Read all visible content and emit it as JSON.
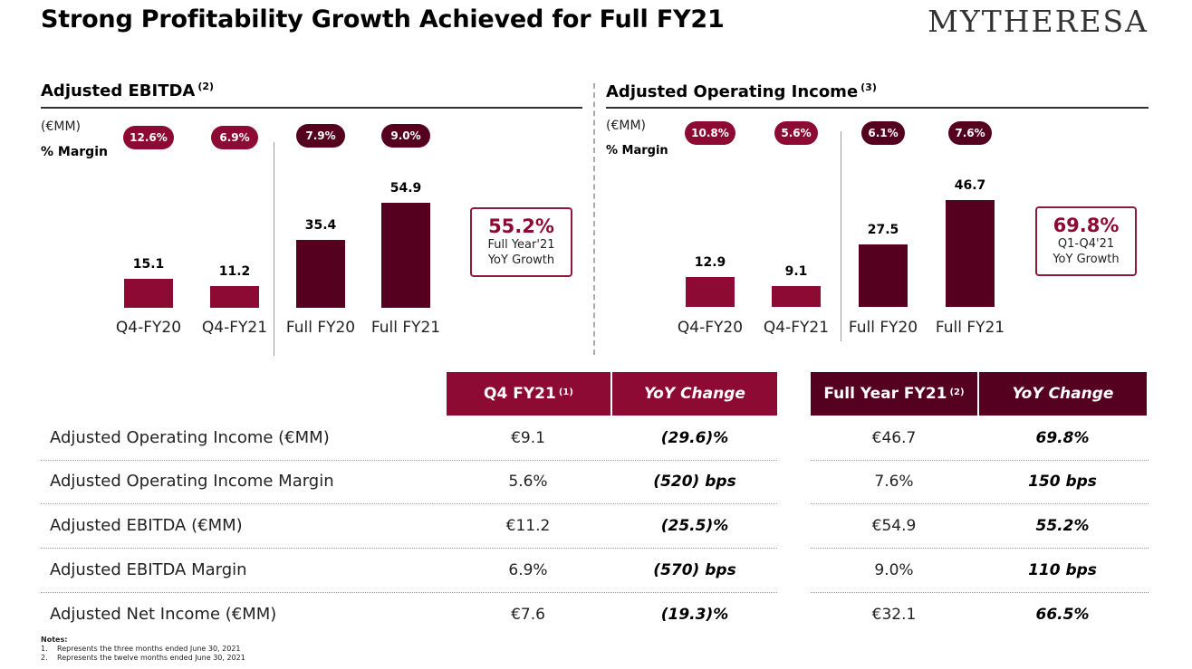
{
  "title": "Strong Profitability Growth Achieved for Full FY21",
  "logo_text": "MYTHERESA",
  "colors": {
    "quarter": "#8c0a33",
    "full_year": "#55001e"
  },
  "chart_data": [
    {
      "type": "bar",
      "title": "Adjusted EBITDA",
      "title_note": "(2)",
      "unit": "(€MM)",
      "margin_label": "% Margin",
      "categories": [
        "Q4-FY20",
        "Q4-FY21",
        "Full FY20",
        "Full FY21"
      ],
      "values": [
        15.1,
        11.2,
        35.4,
        54.9
      ],
      "value_labels": [
        "15.1",
        "11.2",
        "35.4",
        "54.9"
      ],
      "margins": [
        "12.6%",
        "6.9%",
        "7.9%",
        "9.0%"
      ],
      "ylim": [
        0,
        60
      ],
      "growth": {
        "pct": "55.2%",
        "line1": "Full Year'21",
        "line2": "YoY Growth"
      }
    },
    {
      "type": "bar",
      "title": "Adjusted Operating Income",
      "title_note": "(3)",
      "unit": "(€MM)",
      "margin_label": "% Margin",
      "categories": [
        "Q4-FY20",
        "Q4-FY21",
        "Full FY20",
        "Full FY21"
      ],
      "values": [
        12.9,
        9.1,
        27.5,
        46.7
      ],
      "value_labels": [
        "12.9",
        "9.1",
        "27.5",
        "46.7"
      ],
      "margins": [
        "10.8%",
        "5.6%",
        "6.1%",
        "7.6%"
      ],
      "ylim": [
        0,
        60
      ],
      "growth": {
        "pct": "69.8%",
        "line1": "Q1-Q4'21",
        "line2": "YoY Growth"
      }
    }
  ],
  "table": {
    "headers": {
      "q4": "Q4 FY21",
      "q4_note": "(1)",
      "q4_yoy": "YoY Change",
      "fy": "Full Year FY21",
      "fy_note": "(2)",
      "fy_yoy": "YoY Change"
    },
    "rows": [
      {
        "label": "Adjusted Operating Income (€MM)",
        "q4": "€9.1",
        "q4_yoy": "(29.6)%",
        "fy": "€46.7",
        "fy_yoy": "69.8%"
      },
      {
        "label": "Adjusted Operating Income Margin",
        "q4": "5.6%",
        "q4_yoy": "(520) bps",
        "fy": "7.6%",
        "fy_yoy": "150 bps"
      },
      {
        "label": "Adjusted EBITDA (€MM)",
        "q4": "€11.2",
        "q4_yoy": "(25.5)%",
        "fy": "€54.9",
        "fy_yoy": "55.2%"
      },
      {
        "label": "Adjusted EBITDA Margin",
        "q4": "6.9%",
        "q4_yoy": "(570) bps",
        "fy": "9.0%",
        "fy_yoy": "110 bps"
      },
      {
        "label": "Adjusted Net Income (€MM)",
        "q4": "€7.6",
        "q4_yoy": "(19.3)%",
        "fy": "€32.1",
        "fy_yoy": "66.5%"
      }
    ]
  },
  "notes": {
    "title": "Notes:",
    "items": [
      {
        "num": "1.",
        "text": "Represents the three months ended June 30, 2021"
      },
      {
        "num": "2.",
        "text": "Represents the twelve months ended June 30, 2021"
      }
    ]
  }
}
